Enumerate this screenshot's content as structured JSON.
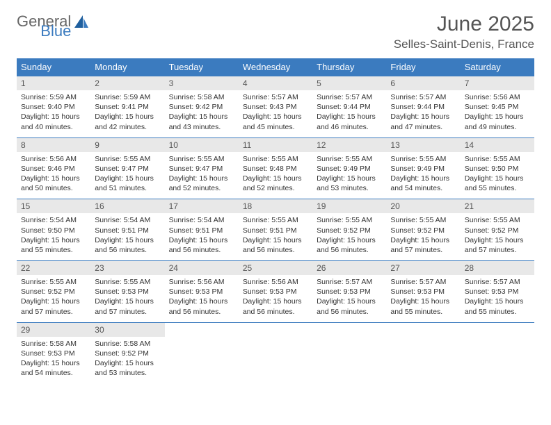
{
  "brand": {
    "part1": "General",
    "part2": "Blue"
  },
  "title": "June 2025",
  "location": "Selles-Saint-Denis, France",
  "colors": {
    "header_bg": "#3b7bbf",
    "header_text": "#ffffff",
    "daynum_bg": "#e8e8e8",
    "text": "#333333",
    "border": "#3b7bbf",
    "page_bg": "#ffffff"
  },
  "typography": {
    "title_fontsize": 30,
    "location_fontsize": 17,
    "dayheader_fontsize": 13,
    "daynum_fontsize": 12,
    "body_fontsize": 10.5
  },
  "day_headers": [
    "Sunday",
    "Monday",
    "Tuesday",
    "Wednesday",
    "Thursday",
    "Friday",
    "Saturday"
  ],
  "weeks": [
    [
      {
        "n": "1",
        "sr": "5:59 AM",
        "ss": "9:40 PM",
        "dl": "15 hours and 40 minutes."
      },
      {
        "n": "2",
        "sr": "5:59 AM",
        "ss": "9:41 PM",
        "dl": "15 hours and 42 minutes."
      },
      {
        "n": "3",
        "sr": "5:58 AM",
        "ss": "9:42 PM",
        "dl": "15 hours and 43 minutes."
      },
      {
        "n": "4",
        "sr": "5:57 AM",
        "ss": "9:43 PM",
        "dl": "15 hours and 45 minutes."
      },
      {
        "n": "5",
        "sr": "5:57 AM",
        "ss": "9:44 PM",
        "dl": "15 hours and 46 minutes."
      },
      {
        "n": "6",
        "sr": "5:57 AM",
        "ss": "9:44 PM",
        "dl": "15 hours and 47 minutes."
      },
      {
        "n": "7",
        "sr": "5:56 AM",
        "ss": "9:45 PM",
        "dl": "15 hours and 49 minutes."
      }
    ],
    [
      {
        "n": "8",
        "sr": "5:56 AM",
        "ss": "9:46 PM",
        "dl": "15 hours and 50 minutes."
      },
      {
        "n": "9",
        "sr": "5:55 AM",
        "ss": "9:47 PM",
        "dl": "15 hours and 51 minutes."
      },
      {
        "n": "10",
        "sr": "5:55 AM",
        "ss": "9:47 PM",
        "dl": "15 hours and 52 minutes."
      },
      {
        "n": "11",
        "sr": "5:55 AM",
        "ss": "9:48 PM",
        "dl": "15 hours and 52 minutes."
      },
      {
        "n": "12",
        "sr": "5:55 AM",
        "ss": "9:49 PM",
        "dl": "15 hours and 53 minutes."
      },
      {
        "n": "13",
        "sr": "5:55 AM",
        "ss": "9:49 PM",
        "dl": "15 hours and 54 minutes."
      },
      {
        "n": "14",
        "sr": "5:55 AM",
        "ss": "9:50 PM",
        "dl": "15 hours and 55 minutes."
      }
    ],
    [
      {
        "n": "15",
        "sr": "5:54 AM",
        "ss": "9:50 PM",
        "dl": "15 hours and 55 minutes."
      },
      {
        "n": "16",
        "sr": "5:54 AM",
        "ss": "9:51 PM",
        "dl": "15 hours and 56 minutes."
      },
      {
        "n": "17",
        "sr": "5:54 AM",
        "ss": "9:51 PM",
        "dl": "15 hours and 56 minutes."
      },
      {
        "n": "18",
        "sr": "5:55 AM",
        "ss": "9:51 PM",
        "dl": "15 hours and 56 minutes."
      },
      {
        "n": "19",
        "sr": "5:55 AM",
        "ss": "9:52 PM",
        "dl": "15 hours and 56 minutes."
      },
      {
        "n": "20",
        "sr": "5:55 AM",
        "ss": "9:52 PM",
        "dl": "15 hours and 57 minutes."
      },
      {
        "n": "21",
        "sr": "5:55 AM",
        "ss": "9:52 PM",
        "dl": "15 hours and 57 minutes."
      }
    ],
    [
      {
        "n": "22",
        "sr": "5:55 AM",
        "ss": "9:52 PM",
        "dl": "15 hours and 57 minutes."
      },
      {
        "n": "23",
        "sr": "5:55 AM",
        "ss": "9:53 PM",
        "dl": "15 hours and 57 minutes."
      },
      {
        "n": "24",
        "sr": "5:56 AM",
        "ss": "9:53 PM",
        "dl": "15 hours and 56 minutes."
      },
      {
        "n": "25",
        "sr": "5:56 AM",
        "ss": "9:53 PM",
        "dl": "15 hours and 56 minutes."
      },
      {
        "n": "26",
        "sr": "5:57 AM",
        "ss": "9:53 PM",
        "dl": "15 hours and 56 minutes."
      },
      {
        "n": "27",
        "sr": "5:57 AM",
        "ss": "9:53 PM",
        "dl": "15 hours and 55 minutes."
      },
      {
        "n": "28",
        "sr": "5:57 AM",
        "ss": "9:53 PM",
        "dl": "15 hours and 55 minutes."
      }
    ],
    [
      {
        "n": "29",
        "sr": "5:58 AM",
        "ss": "9:53 PM",
        "dl": "15 hours and 54 minutes."
      },
      {
        "n": "30",
        "sr": "5:58 AM",
        "ss": "9:52 PM",
        "dl": "15 hours and 53 minutes."
      },
      null,
      null,
      null,
      null,
      null
    ]
  ],
  "labels": {
    "sunrise": "Sunrise:",
    "sunset": "Sunset:",
    "daylight": "Daylight:"
  }
}
